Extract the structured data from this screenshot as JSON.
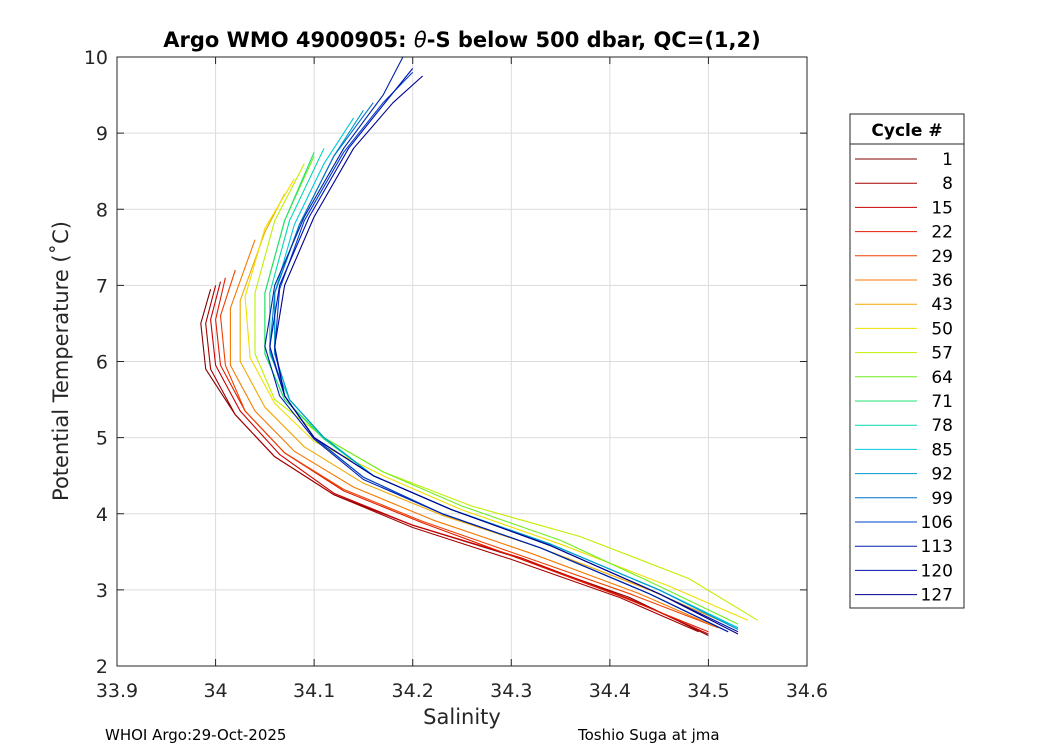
{
  "chart_data": {
    "type": "line",
    "title_prefix": "Argo WMO 4900905: ",
    "title_theta": "θ",
    "title_suffix": "-S below 500 dbar,  QC=(1,2)",
    "xlabel": "Salinity",
    "ylabel": "Potential Temperature (˚C)",
    "xlim": [
      33.9,
      34.6
    ],
    "ylim": [
      2,
      10
    ],
    "xticks": [
      "33.9",
      "34",
      "34.1",
      "34.2",
      "34.3",
      "34.4",
      "34.5",
      "34.6"
    ],
    "yticks": [
      "2",
      "3",
      "4",
      "5",
      "6",
      "7",
      "8",
      "9",
      "10"
    ],
    "grid": true,
    "legend_title": "Cycle #",
    "legend_position": "outside-right",
    "legend": [
      {
        "label": "1",
        "color": "#800000"
      },
      {
        "label": "8",
        "color": "#a50000"
      },
      {
        "label": "15",
        "color": "#c80000"
      },
      {
        "label": "22",
        "color": "#e01c00"
      },
      {
        "label": "29",
        "color": "#f04000"
      },
      {
        "label": "36",
        "color": "#f57800"
      },
      {
        "label": "43",
        "color": "#f0a800"
      },
      {
        "label": "50",
        "color": "#f0e000"
      },
      {
        "label": "57",
        "color": "#c0f000"
      },
      {
        "label": "64",
        "color": "#70ee20"
      },
      {
        "label": "71",
        "color": "#20e070"
      },
      {
        "label": "78",
        "color": "#00d8b0"
      },
      {
        "label": "85",
        "color": "#00c8e0"
      },
      {
        "label": "92",
        "color": "#0098d0"
      },
      {
        "label": "99",
        "color": "#0070c8"
      },
      {
        "label": "106",
        "color": "#0040c8"
      },
      {
        "label": "113",
        "color": "#0020a8"
      },
      {
        "label": "120",
        "color": "#0010b0"
      },
      {
        "label": "127",
        "color": "#000090"
      }
    ],
    "series": [
      {
        "color": "#800000",
        "x": [
          34.5,
          34.42,
          34.3,
          34.2,
          34.12,
          34.06,
          34.02,
          33.99,
          33.985,
          33.995
        ],
        "y": [
          2.4,
          2.9,
          3.45,
          3.85,
          4.25,
          4.75,
          5.3,
          5.9,
          6.5,
          6.95
        ]
      },
      {
        "color": "#a50000",
        "x": [
          34.49,
          34.41,
          34.3,
          34.2,
          34.12,
          34.06,
          34.02,
          33.995,
          33.99,
          34.0
        ],
        "y": [
          2.45,
          2.9,
          3.4,
          3.82,
          4.25,
          4.75,
          5.3,
          5.9,
          6.5,
          7.0
        ]
      },
      {
        "color": "#c80000",
        "x": [
          34.5,
          34.42,
          34.31,
          34.2,
          34.12,
          34.065,
          34.025,
          34.0,
          33.995,
          34.005
        ],
        "y": [
          2.42,
          2.88,
          3.42,
          3.85,
          4.27,
          4.78,
          5.35,
          5.95,
          6.55,
          7.05
        ]
      },
      {
        "color": "#e01c00",
        "x": [
          34.5,
          34.41,
          34.3,
          34.21,
          34.13,
          34.07,
          34.03,
          34.005,
          34.0,
          34.01
        ],
        "y": [
          2.45,
          2.92,
          3.45,
          3.88,
          4.3,
          4.8,
          5.35,
          5.95,
          6.55,
          7.1
        ]
      },
      {
        "color": "#f04000",
        "x": [
          34.51,
          34.42,
          34.31,
          34.21,
          34.13,
          34.07,
          34.03,
          34.01,
          34.005,
          34.02
        ],
        "y": [
          2.5,
          2.95,
          3.45,
          3.9,
          4.32,
          4.8,
          5.35,
          5.95,
          6.6,
          7.2
        ]
      },
      {
        "color": "#f57800",
        "x": [
          34.51,
          34.43,
          34.32,
          34.22,
          34.14,
          34.08,
          34.04,
          34.015,
          34.015,
          34.04
        ],
        "y": [
          2.5,
          2.95,
          3.48,
          3.92,
          4.35,
          4.82,
          5.35,
          5.95,
          6.7,
          7.6
        ]
      },
      {
        "color": "#f0a800",
        "x": [
          34.52,
          34.44,
          34.33,
          34.23,
          34.15,
          34.09,
          34.05,
          34.025,
          34.025,
          34.05,
          34.07
        ],
        "y": [
          2.55,
          3.0,
          3.55,
          3.98,
          4.4,
          4.88,
          5.4,
          6.0,
          6.8,
          7.7,
          8.2
        ]
      },
      {
        "color": "#f0e000",
        "x": [
          34.54,
          34.46,
          34.35,
          34.25,
          34.17,
          34.1,
          34.06,
          34.035,
          34.03,
          34.05,
          34.08
        ],
        "y": [
          2.6,
          3.05,
          3.6,
          4.05,
          4.5,
          4.95,
          5.45,
          6.05,
          6.85,
          7.75,
          8.4
        ]
      },
      {
        "color": "#c0f000",
        "x": [
          34.55,
          34.48,
          34.37,
          34.26,
          34.17,
          34.11,
          34.06,
          34.04,
          34.04,
          34.06,
          34.09
        ],
        "y": [
          2.6,
          3.15,
          3.7,
          4.1,
          4.55,
          5.0,
          5.5,
          6.1,
          6.9,
          7.85,
          8.6
        ]
      },
      {
        "color": "#70ee20",
        "x": [
          34.53,
          34.45,
          34.35,
          34.25,
          34.17,
          34.11,
          34.07,
          34.05,
          34.05,
          34.07,
          34.1
        ],
        "y": [
          2.55,
          3.05,
          3.65,
          4.1,
          4.55,
          5.0,
          5.5,
          6.1,
          6.9,
          7.85,
          8.7
        ]
      },
      {
        "color": "#20e070",
        "x": [
          34.53,
          34.45,
          34.34,
          34.24,
          34.16,
          34.11,
          34.07,
          34.05,
          34.05,
          34.07,
          34.1
        ],
        "y": [
          2.5,
          3.0,
          3.6,
          4.05,
          4.5,
          4.98,
          5.5,
          6.1,
          6.9,
          7.85,
          8.75
        ]
      },
      {
        "color": "#00d8b0",
        "x": [
          34.53,
          34.45,
          34.34,
          34.24,
          34.16,
          34.11,
          34.075,
          34.055,
          34.055,
          34.075,
          34.11
        ],
        "y": [
          2.5,
          3.0,
          3.6,
          4.05,
          4.5,
          5.0,
          5.5,
          6.1,
          6.9,
          7.85,
          8.8
        ]
      },
      {
        "color": "#00c8e0",
        "x": [
          34.53,
          34.45,
          34.34,
          34.24,
          34.16,
          34.11,
          34.075,
          34.06,
          34.06,
          34.08,
          34.11,
          34.14
        ],
        "y": [
          2.5,
          3.0,
          3.6,
          4.05,
          4.5,
          5.0,
          5.5,
          6.1,
          6.9,
          7.8,
          8.6,
          9.2
        ]
      },
      {
        "color": "#0098d0",
        "x": [
          34.53,
          34.45,
          34.34,
          34.24,
          34.16,
          34.11,
          34.075,
          34.06,
          34.06,
          34.085,
          34.12,
          34.15
        ],
        "y": [
          2.48,
          3.0,
          3.6,
          4.05,
          4.5,
          5.0,
          5.5,
          6.1,
          6.9,
          7.8,
          8.7,
          9.3
        ]
      },
      {
        "color": "#0070c8",
        "x": [
          34.52,
          34.44,
          34.33,
          34.23,
          34.15,
          34.1,
          34.07,
          34.055,
          34.06,
          34.085,
          34.12,
          34.16
        ],
        "y": [
          2.45,
          2.95,
          3.55,
          4.0,
          4.48,
          5.0,
          5.55,
          6.15,
          6.9,
          7.8,
          8.7,
          9.4
        ]
      },
      {
        "color": "#0040c8",
        "x": [
          34.52,
          34.44,
          34.33,
          34.23,
          34.15,
          34.1,
          34.07,
          34.06,
          34.065,
          34.09,
          34.13,
          34.17,
          34.2
        ],
        "y": [
          2.45,
          2.95,
          3.55,
          4.0,
          4.48,
          5.0,
          5.55,
          6.15,
          6.95,
          7.85,
          8.75,
          9.4,
          9.8
        ]
      },
      {
        "color": "#0020a8",
        "x": [
          34.52,
          34.44,
          34.33,
          34.23,
          34.15,
          34.1,
          34.065,
          34.05,
          34.06,
          34.09,
          34.13,
          34.17,
          34.19
        ],
        "y": [
          2.45,
          2.95,
          3.55,
          4.0,
          4.45,
          4.98,
          5.55,
          6.2,
          7.0,
          7.9,
          8.8,
          9.5,
          10.0
        ]
      },
      {
        "color": "#0010b0",
        "x": [
          34.53,
          34.45,
          34.34,
          34.24,
          34.16,
          34.1,
          34.07,
          34.055,
          34.065,
          34.095,
          34.135,
          34.175,
          34.2
        ],
        "y": [
          2.45,
          2.95,
          3.58,
          4.05,
          4.5,
          5.0,
          5.55,
          6.2,
          7.0,
          7.9,
          8.8,
          9.45,
          9.85
        ]
      },
      {
        "color": "#000090",
        "x": [
          34.53,
          34.45,
          34.34,
          34.24,
          34.16,
          34.1,
          34.07,
          34.06,
          34.07,
          34.1,
          34.14,
          34.18,
          34.21
        ],
        "y": [
          2.42,
          2.95,
          3.58,
          4.05,
          4.5,
          5.0,
          5.55,
          6.2,
          7.0,
          7.9,
          8.8,
          9.4,
          9.75
        ]
      }
    ]
  },
  "footer": {
    "left": "WHOI Argo:29-Oct-2025",
    "right": "Toshio Suga at jma"
  }
}
